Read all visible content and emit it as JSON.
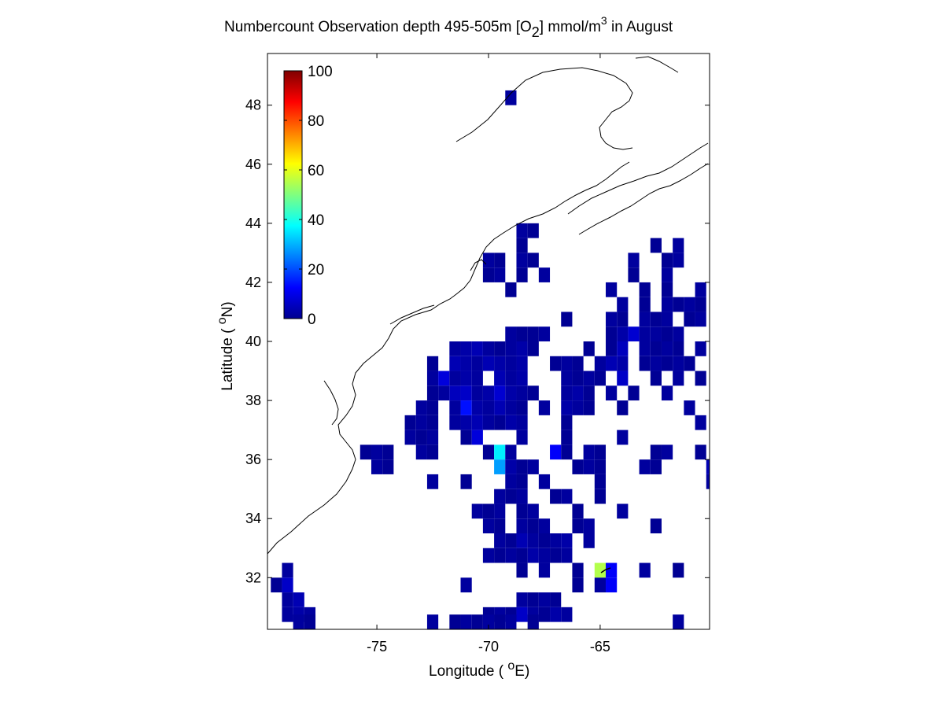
{
  "figure": {
    "title_main": "Numbercount Observation depth 495-505m [O",
    "title_sub": "2",
    "title_after_sub": "] mmol/m",
    "title_sup": "3",
    "title_end": " in August",
    "xlabel_pre": "Longitude ( ",
    "xlabel_deg": "o",
    "xlabel_post": "E)",
    "ylabel_pre": "Latitude ( ",
    "ylabel_deg": "o",
    "ylabel_post": "N)"
  },
  "chart_data": {
    "type": "heatmap",
    "x_ticks": [
      {
        "value": -75,
        "label": "-75"
      },
      {
        "value": -70,
        "label": "-70"
      },
      {
        "value": -65,
        "label": "-65"
      }
    ],
    "y_ticks": [
      {
        "value": 32,
        "label": "32"
      },
      {
        "value": 34,
        "label": "34"
      },
      {
        "value": 36,
        "label": "36"
      },
      {
        "value": 38,
        "label": "38"
      },
      {
        "value": 40,
        "label": "40"
      },
      {
        "value": 42,
        "label": "42"
      },
      {
        "value": 44,
        "label": "44"
      },
      {
        "value": 46,
        "label": "46"
      },
      {
        "value": 48,
        "label": "48"
      }
    ],
    "xlim": [
      -79.9,
      -60.1
    ],
    "ylim": [
      30.25,
      49.75
    ],
    "colormap": "jet",
    "colorbar": {
      "range": [
        0,
        100
      ],
      "ticks": [
        {
          "value": 0,
          "label": "0"
        },
        {
          "value": 20,
          "label": "20"
        },
        {
          "value": 40,
          "label": "40"
        },
        {
          "value": 60,
          "label": "60"
        },
        {
          "value": 80,
          "label": "80"
        },
        {
          "value": 100,
          "label": "100"
        }
      ]
    },
    "grid_step_deg": 0.5,
    "cells_note": "value = observation count; cell centers lon/lat",
    "cells": [
      [
        -69.0,
        48.25,
        3
      ],
      [
        -68.5,
        43.75,
        3
      ],
      [
        -68.0,
        43.75,
        2
      ],
      [
        -68.5,
        43.25,
        2
      ],
      [
        -70.0,
        42.75,
        3
      ],
      [
        -69.5,
        42.75,
        2
      ],
      [
        -68.5,
        42.75,
        3
      ],
      [
        -68.0,
        42.75,
        2
      ],
      [
        -70.0,
        42.25,
        2
      ],
      [
        -69.5,
        42.25,
        3
      ],
      [
        -68.5,
        42.25,
        2
      ],
      [
        -67.5,
        42.25,
        3
      ],
      [
        -69.0,
        41.75,
        2
      ],
      [
        -64.5,
        41.75,
        3
      ],
      [
        -62.5,
        43.25,
        2
      ],
      [
        -61.5,
        43.25,
        3
      ],
      [
        -63.5,
        42.75,
        3
      ],
      [
        -62.0,
        42.75,
        2
      ],
      [
        -61.5,
        42.75,
        3
      ],
      [
        -63.5,
        42.25,
        2
      ],
      [
        -62.0,
        42.25,
        3
      ],
      [
        -63.0,
        41.75,
        2
      ],
      [
        -62.0,
        41.75,
        2
      ],
      [
        -60.5,
        41.75,
        3
      ],
      [
        -64.0,
        41.25,
        3
      ],
      [
        -63.0,
        41.25,
        2
      ],
      [
        -62.0,
        41.25,
        3
      ],
      [
        -61.5,
        41.25,
        2
      ],
      [
        -61.0,
        41.25,
        3
      ],
      [
        -60.5,
        41.25,
        2
      ],
      [
        -66.5,
        40.75,
        2
      ],
      [
        -64.5,
        40.75,
        3
      ],
      [
        -64.0,
        40.75,
        2
      ],
      [
        -63.0,
        40.75,
        3
      ],
      [
        -62.5,
        40.75,
        2
      ],
      [
        -62.0,
        40.75,
        3
      ],
      [
        -61.0,
        40.75,
        2
      ],
      [
        -60.5,
        40.75,
        3
      ],
      [
        -69.0,
        40.25,
        3
      ],
      [
        -68.5,
        40.25,
        2
      ],
      [
        -68.0,
        40.25,
        2
      ],
      [
        -67.5,
        40.25,
        3
      ],
      [
        -64.5,
        40.25,
        2
      ],
      [
        -64.0,
        40.25,
        4
      ],
      [
        -63.5,
        40.25,
        8
      ],
      [
        -63.0,
        40.25,
        3
      ],
      [
        -62.5,
        40.25,
        3
      ],
      [
        -62.0,
        40.25,
        2
      ],
      [
        -61.5,
        40.25,
        3
      ],
      [
        -71.5,
        39.75,
        3
      ],
      [
        -71.0,
        39.75,
        4
      ],
      [
        -70.5,
        39.75,
        5
      ],
      [
        -70.0,
        39.75,
        3
      ],
      [
        -69.5,
        39.75,
        2
      ],
      [
        -69.0,
        39.75,
        3
      ],
      [
        -68.5,
        39.75,
        4
      ],
      [
        -68.0,
        39.75,
        2
      ],
      [
        -65.5,
        39.75,
        2
      ],
      [
        -64.5,
        39.75,
        2
      ],
      [
        -64.0,
        39.75,
        6
      ],
      [
        -63.0,
        39.75,
        3
      ],
      [
        -62.5,
        39.75,
        2
      ],
      [
        -62.0,
        39.75,
        3
      ],
      [
        -61.5,
        39.75,
        2
      ],
      [
        -60.5,
        39.75,
        3
      ],
      [
        -72.5,
        39.25,
        2
      ],
      [
        -71.5,
        39.25,
        5
      ],
      [
        -71.0,
        39.25,
        4
      ],
      [
        -70.5,
        39.25,
        3
      ],
      [
        -70.0,
        39.25,
        5
      ],
      [
        -69.5,
        39.25,
        4
      ],
      [
        -69.0,
        39.25,
        3
      ],
      [
        -68.5,
        39.25,
        4
      ],
      [
        -67.0,
        39.25,
        2
      ],
      [
        -66.5,
        39.25,
        3
      ],
      [
        -66.0,
        39.25,
        2
      ],
      [
        -65.0,
        39.25,
        3
      ],
      [
        -64.5,
        39.25,
        5
      ],
      [
        -64.0,
        39.25,
        4
      ],
      [
        -63.0,
        39.25,
        2
      ],
      [
        -62.5,
        39.25,
        3
      ],
      [
        -62.0,
        39.25,
        2
      ],
      [
        -61.5,
        39.25,
        3
      ],
      [
        -61.0,
        39.25,
        2
      ],
      [
        -72.5,
        38.75,
        3
      ],
      [
        -72.0,
        38.75,
        9
      ],
      [
        -71.5,
        38.75,
        3
      ],
      [
        -71.0,
        38.75,
        4
      ],
      [
        -70.5,
        38.75,
        3
      ],
      [
        -69.5,
        38.75,
        5
      ],
      [
        -69.0,
        38.75,
        3
      ],
      [
        -68.5,
        38.75,
        4
      ],
      [
        -66.5,
        38.75,
        3
      ],
      [
        -66.0,
        38.75,
        2
      ],
      [
        -65.5,
        38.75,
        3
      ],
      [
        -65.0,
        38.75,
        2
      ],
      [
        -64.0,
        38.75,
        7
      ],
      [
        -62.5,
        38.75,
        2
      ],
      [
        -61.5,
        38.75,
        3
      ],
      [
        -60.5,
        38.75,
        2
      ],
      [
        -72.5,
        38.25,
        2
      ],
      [
        -72.0,
        38.25,
        3
      ],
      [
        -71.5,
        38.25,
        6
      ],
      [
        -71.0,
        38.25,
        7
      ],
      [
        -70.5,
        38.25,
        3
      ],
      [
        -70.0,
        38.25,
        4
      ],
      [
        -69.5,
        38.25,
        8
      ],
      [
        -69.0,
        38.25,
        4
      ],
      [
        -68.5,
        38.25,
        3
      ],
      [
        -68.0,
        38.25,
        2
      ],
      [
        -66.5,
        38.25,
        3
      ],
      [
        -66.0,
        38.25,
        4
      ],
      [
        -65.5,
        38.25,
        2
      ],
      [
        -64.5,
        38.25,
        3
      ],
      [
        -63.5,
        38.25,
        2
      ],
      [
        -62.0,
        38.25,
        3
      ],
      [
        -73.0,
        37.75,
        3
      ],
      [
        -72.5,
        37.75,
        2
      ],
      [
        -71.5,
        37.75,
        3
      ],
      [
        -71.0,
        37.75,
        14
      ],
      [
        -70.5,
        37.75,
        4
      ],
      [
        -70.0,
        37.75,
        3
      ],
      [
        -69.5,
        37.75,
        5
      ],
      [
        -69.0,
        37.75,
        3
      ],
      [
        -68.5,
        37.75,
        2
      ],
      [
        -67.5,
        37.75,
        3
      ],
      [
        -66.5,
        37.75,
        4
      ],
      [
        -66.0,
        37.75,
        3
      ],
      [
        -65.5,
        37.75,
        2
      ],
      [
        -64.0,
        37.75,
        2
      ],
      [
        -61.0,
        37.75,
        3
      ],
      [
        -73.5,
        37.25,
        2
      ],
      [
        -73.0,
        37.25,
        3
      ],
      [
        -72.5,
        37.25,
        2
      ],
      [
        -71.5,
        37.25,
        3
      ],
      [
        -71.0,
        37.25,
        4
      ],
      [
        -70.5,
        37.25,
        5
      ],
      [
        -70.0,
        37.25,
        3
      ],
      [
        -69.5,
        37.25,
        2
      ],
      [
        -69.0,
        37.25,
        4
      ],
      [
        -68.5,
        37.25,
        3
      ],
      [
        -66.5,
        37.25,
        2
      ],
      [
        -60.5,
        37.25,
        3
      ],
      [
        -73.5,
        36.75,
        3
      ],
      [
        -73.0,
        36.75,
        2
      ],
      [
        -72.5,
        36.75,
        3
      ],
      [
        -71.0,
        36.75,
        2
      ],
      [
        -70.5,
        36.75,
        9
      ],
      [
        -68.5,
        36.75,
        3
      ],
      [
        -66.5,
        36.75,
        2
      ],
      [
        -64.0,
        36.75,
        3
      ],
      [
        -75.5,
        36.25,
        2
      ],
      [
        -75.0,
        36.25,
        3
      ],
      [
        -74.5,
        36.25,
        2
      ],
      [
        -73.0,
        36.25,
        3
      ],
      [
        -72.5,
        36.25,
        2
      ],
      [
        -70.0,
        36.25,
        2
      ],
      [
        -69.5,
        36.25,
        36
      ],
      [
        -69.0,
        36.25,
        3
      ],
      [
        -67.0,
        36.25,
        12
      ],
      [
        -66.5,
        36.25,
        2
      ],
      [
        -65.5,
        36.25,
        3
      ],
      [
        -65.0,
        36.25,
        2
      ],
      [
        -62.5,
        36.25,
        2
      ],
      [
        -62.0,
        36.25,
        3
      ],
      [
        -60.5,
        36.25,
        2
      ],
      [
        -75.0,
        35.75,
        3
      ],
      [
        -74.5,
        35.75,
        2
      ],
      [
        -69.5,
        35.75,
        28
      ],
      [
        -69.0,
        35.75,
        4
      ],
      [
        -68.5,
        35.75,
        2
      ],
      [
        -68.0,
        35.75,
        3
      ],
      [
        -66.0,
        35.75,
        2
      ],
      [
        -65.5,
        35.75,
        3
      ],
      [
        -65.0,
        35.75,
        2
      ],
      [
        -63.0,
        35.75,
        3
      ],
      [
        -62.5,
        35.75,
        2
      ],
      [
        -60.0,
        35.75,
        5
      ],
      [
        -72.5,
        35.25,
        3
      ],
      [
        -71.0,
        35.25,
        2
      ],
      [
        -69.0,
        35.25,
        3
      ],
      [
        -68.5,
        35.25,
        2
      ],
      [
        -67.5,
        35.25,
        3
      ],
      [
        -65.0,
        35.25,
        2
      ],
      [
        -60.0,
        35.25,
        3
      ],
      [
        -69.5,
        34.75,
        3
      ],
      [
        -69.0,
        34.75,
        2
      ],
      [
        -68.5,
        34.75,
        3
      ],
      [
        -67.0,
        34.75,
        2
      ],
      [
        -66.5,
        34.75,
        3
      ],
      [
        -65.0,
        34.75,
        2
      ],
      [
        -70.5,
        34.25,
        3
      ],
      [
        -70.0,
        34.25,
        2
      ],
      [
        -69.5,
        34.25,
        3
      ],
      [
        -68.5,
        34.25,
        2
      ],
      [
        -68.0,
        34.25,
        3
      ],
      [
        -66.0,
        34.25,
        2
      ],
      [
        -64.0,
        34.25,
        3
      ],
      [
        -70.0,
        33.75,
        3
      ],
      [
        -69.5,
        33.75,
        2
      ],
      [
        -68.5,
        33.75,
        3
      ],
      [
        -68.0,
        33.75,
        2
      ],
      [
        -67.5,
        33.75,
        3
      ],
      [
        -66.0,
        33.75,
        2
      ],
      [
        -65.5,
        33.75,
        3
      ],
      [
        -62.5,
        33.75,
        2
      ],
      [
        -69.5,
        33.25,
        3
      ],
      [
        -69.0,
        33.25,
        2
      ],
      [
        -68.5,
        33.25,
        5
      ],
      [
        -68.0,
        33.25,
        3
      ],
      [
        -67.5,
        33.25,
        2
      ],
      [
        -67.0,
        33.25,
        3
      ],
      [
        -66.5,
        33.25,
        4
      ],
      [
        -65.5,
        33.25,
        3
      ],
      [
        -70.0,
        32.75,
        3
      ],
      [
        -69.5,
        32.75,
        2
      ],
      [
        -69.0,
        32.75,
        3
      ],
      [
        -68.5,
        32.75,
        2
      ],
      [
        -68.0,
        32.75,
        4
      ],
      [
        -67.5,
        32.75,
        3
      ],
      [
        -67.0,
        32.75,
        2
      ],
      [
        -66.5,
        32.75,
        3
      ],
      [
        -79.0,
        32.25,
        3
      ],
      [
        -68.5,
        32.25,
        2
      ],
      [
        -67.5,
        32.25,
        3
      ],
      [
        -66.0,
        32.25,
        2
      ],
      [
        -65.0,
        32.25,
        55
      ],
      [
        -64.5,
        32.25,
        12
      ],
      [
        -63.0,
        32.25,
        3
      ],
      [
        -61.5,
        32.25,
        2
      ],
      [
        -79.5,
        31.75,
        2
      ],
      [
        -79.0,
        31.75,
        7
      ],
      [
        -71.0,
        31.75,
        3
      ],
      [
        -66.0,
        31.75,
        2
      ],
      [
        -65.0,
        31.75,
        3
      ],
      [
        -64.5,
        31.75,
        12
      ],
      [
        -79.0,
        31.25,
        3
      ],
      [
        -78.5,
        31.25,
        5
      ],
      [
        -68.5,
        31.25,
        3
      ],
      [
        -68.0,
        31.25,
        2
      ],
      [
        -67.5,
        31.25,
        3
      ],
      [
        -67.0,
        31.25,
        2
      ],
      [
        -79.0,
        30.75,
        3
      ],
      [
        -78.5,
        30.75,
        4
      ],
      [
        -78.0,
        30.75,
        3
      ],
      [
        -70.0,
        30.75,
        2
      ],
      [
        -69.5,
        30.75,
        3
      ],
      [
        -69.0,
        30.75,
        2
      ],
      [
        -68.5,
        30.75,
        7
      ],
      [
        -68.0,
        30.75,
        3
      ],
      [
        -67.5,
        30.75,
        2
      ],
      [
        -67.0,
        30.75,
        4
      ],
      [
        -66.5,
        30.75,
        3
      ],
      [
        -78.5,
        30.5,
        3
      ],
      [
        -78.0,
        30.5,
        2
      ],
      [
        -72.5,
        30.5,
        3
      ],
      [
        -71.5,
        30.5,
        2
      ],
      [
        -71.0,
        30.5,
        3
      ],
      [
        -70.5,
        30.5,
        2
      ],
      [
        -70.0,
        30.5,
        3
      ],
      [
        -69.5,
        30.5,
        2
      ],
      [
        -69.0,
        30.5,
        3
      ],
      [
        -68.0,
        30.5,
        2
      ],
      [
        -61.5,
        30.5,
        3
      ]
    ]
  }
}
